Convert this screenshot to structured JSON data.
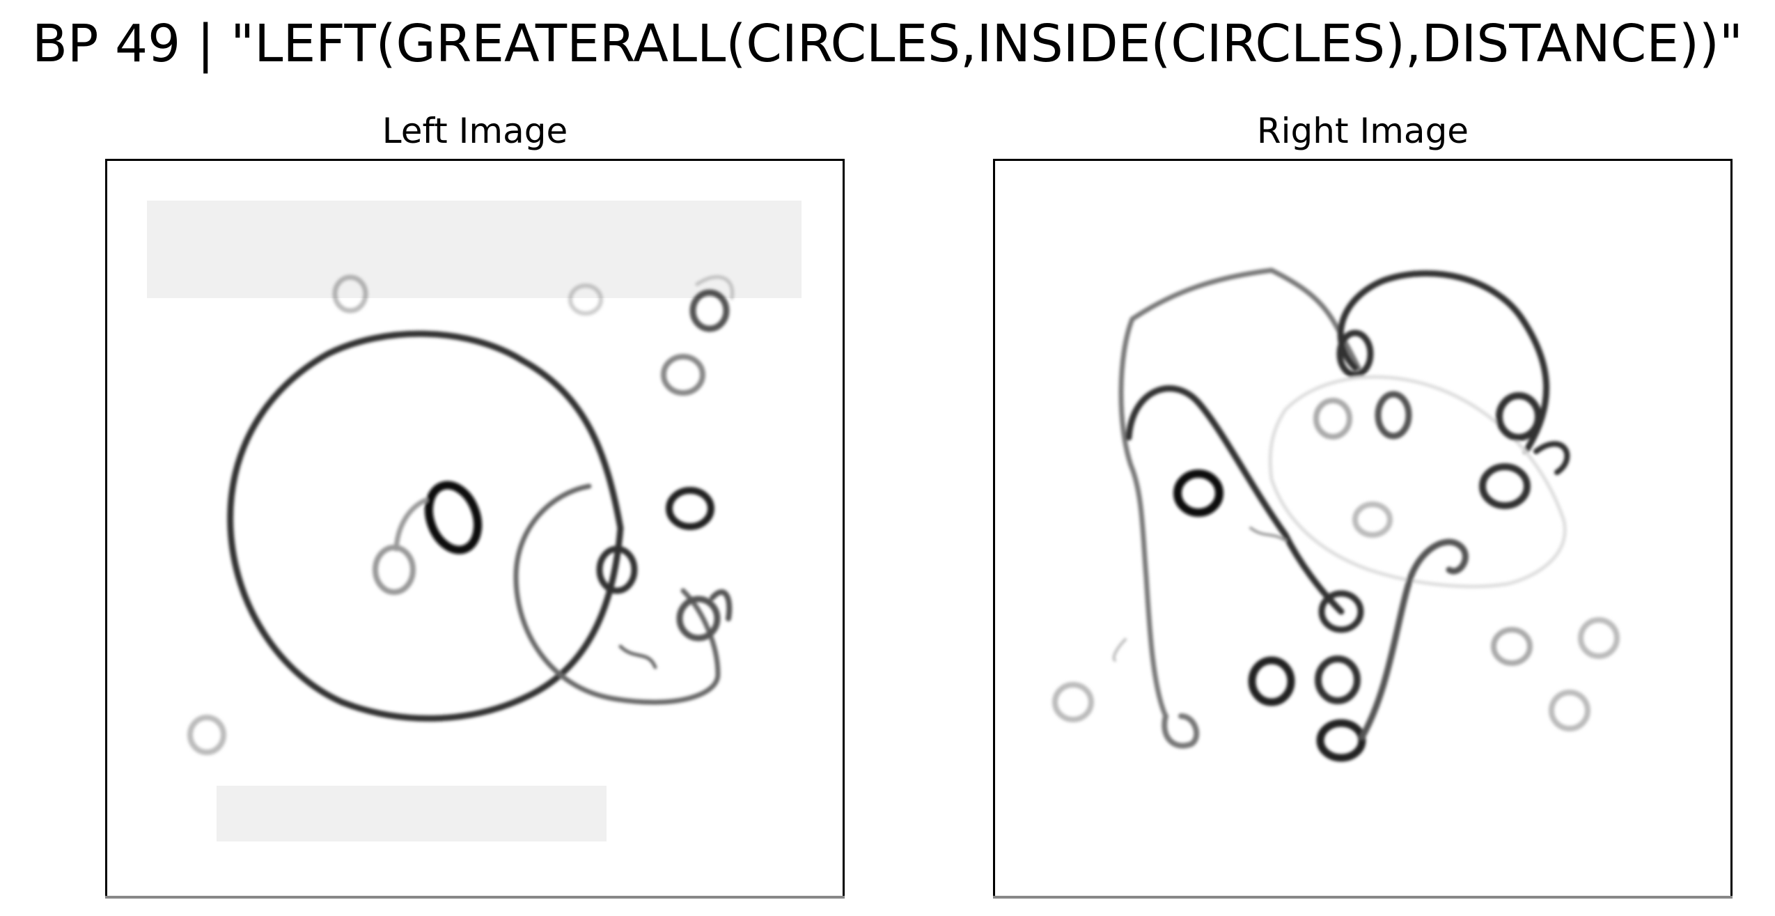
{
  "title": "BP 49 | \"LEFT(GREATERALL(CIRCLES,INSIDE(CIRCLES),DISTANCE))\"",
  "panels": {
    "left": {
      "title": "Left Image"
    },
    "right": {
      "title": "Right Image"
    }
  },
  "colors": {
    "background": "#ffffff",
    "frame": "#000000",
    "ink_dark": "#111111",
    "ink_mid": "#555555",
    "ink_light": "#aaaaaa"
  }
}
